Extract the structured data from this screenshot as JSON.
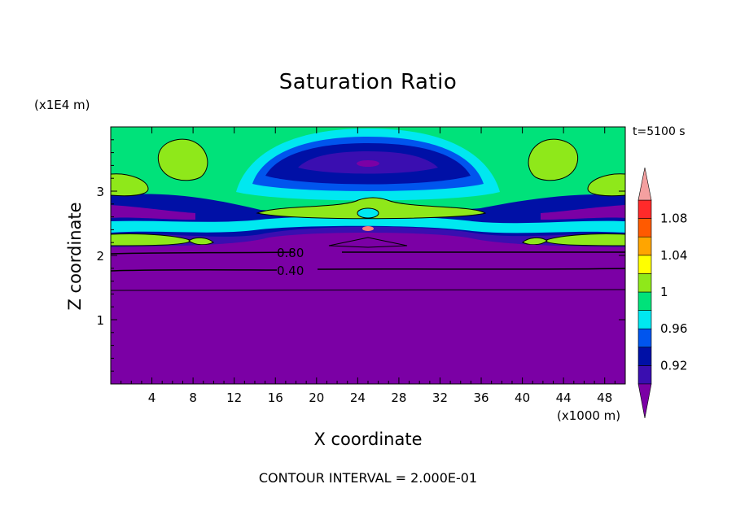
{
  "chart_data": {
    "type": "heatmap",
    "title": "Saturation Ratio",
    "time_label": "t=5100 s",
    "xlabel": "X coordinate",
    "ylabel": "Z coordinate",
    "x_unit": "(x1000 m)",
    "y_unit": "(x1E4 m)",
    "footer": "CONTOUR INTERVAL = 2.000E-01",
    "xlim": [
      0,
      50
    ],
    "ylim": [
      0,
      4
    ],
    "x_ticks": [
      4,
      8,
      12,
      16,
      20,
      24,
      28,
      32,
      36,
      40,
      44,
      48
    ],
    "y_ticks": [
      1,
      2,
      3
    ],
    "contour_labels": [
      {
        "text": "0.80",
        "x": 17,
        "z": 2.04
      },
      {
        "text": "0.40",
        "x": 17,
        "z": 1.76
      }
    ],
    "contour_lines_z": [
      2.05,
      1.78,
      1.48
    ],
    "colorbar": {
      "labels": [
        "0.92",
        "0.96",
        "1",
        "1.04",
        "1.08"
      ],
      "levels": [
        0.9,
        0.92,
        0.94,
        0.96,
        0.98,
        1.0,
        1.02,
        1.04,
        1.06,
        1.08,
        1.1
      ],
      "colors": [
        "#7b00a5",
        "#3a0eb0",
        "#0010a6",
        "#0055ee",
        "#00e8f0",
        "#00e27a",
        "#8fe81a",
        "#ffff00",
        "#ffa500",
        "#ff5a00",
        "#ff2a2a",
        "#f4a0a0"
      ]
    },
    "bands": [
      {
        "color": "#7b00a5",
        "role": "background",
        "z_top": 2.2
      },
      {
        "color": "#00e27a",
        "role": "upper layer",
        "z_range": [
          2.2,
          4.0
        ]
      }
    ]
  }
}
